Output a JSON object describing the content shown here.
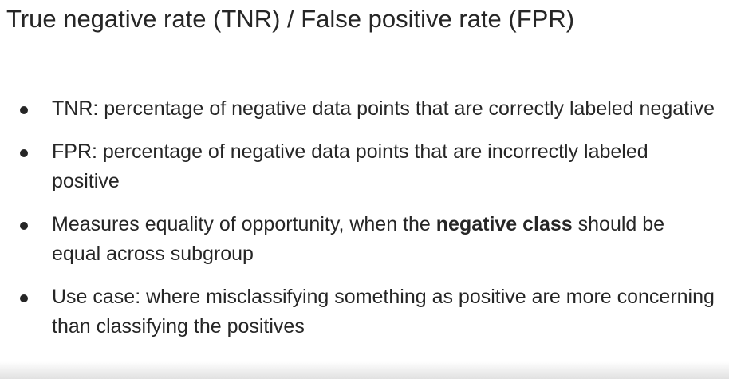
{
  "slide": {
    "title": "True negative rate (TNR) / False positive rate (FPR)",
    "bullets": [
      {
        "text": "TNR: percentage of negative data points that are correctly labeled negative"
      },
      {
        "text": "FPR: percentage of negative data points that are  incorrectly labeled positive"
      },
      {
        "pre": "Measures equality of opportunity, when the ",
        "bold": "negative class",
        "post": " should be equal across subgroup"
      },
      {
        "text": "Use case: where misclassifying something as positive are more concerning than classifying the positives"
      }
    ]
  }
}
